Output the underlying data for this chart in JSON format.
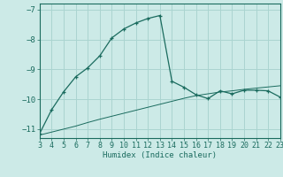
{
  "xlabel": "Humidex (Indice chaleur)",
  "bg_color": "#cceae7",
  "grid_color": "#aad4d0",
  "line_color": "#1a6b5e",
  "xlim": [
    3,
    23
  ],
  "ylim": [
    -11.3,
    -6.8
  ],
  "xticks": [
    3,
    4,
    5,
    6,
    7,
    8,
    9,
    10,
    11,
    12,
    13,
    14,
    15,
    16,
    17,
    18,
    19,
    20,
    21,
    22,
    23
  ],
  "yticks": [
    -11,
    -10,
    -9,
    -8,
    -7
  ],
  "curve1_x": [
    3,
    4,
    5,
    6,
    7,
    8,
    9,
    10,
    11,
    12,
    13,
    14,
    15,
    16,
    17,
    18,
    19,
    20,
    21,
    22,
    23
  ],
  "curve1_y": [
    -11.15,
    -10.35,
    -9.75,
    -9.25,
    -8.95,
    -8.55,
    -7.95,
    -7.65,
    -7.45,
    -7.3,
    -7.2,
    -9.4,
    -9.6,
    -9.85,
    -9.98,
    -9.72,
    -9.82,
    -9.7,
    -9.7,
    -9.72,
    -9.93
  ],
  "curve2_x": [
    3,
    4,
    5,
    6,
    7,
    8,
    9,
    10,
    11,
    12,
    13,
    14,
    15,
    16,
    17,
    18,
    19,
    20,
    21,
    22,
    23
  ],
  "curve2_y": [
    -11.2,
    -11.1,
    -11.0,
    -10.9,
    -10.78,
    -10.67,
    -10.57,
    -10.47,
    -10.37,
    -10.27,
    -10.17,
    -10.07,
    -9.97,
    -9.88,
    -9.82,
    -9.76,
    -9.72,
    -9.67,
    -9.63,
    -9.59,
    -9.55
  ]
}
